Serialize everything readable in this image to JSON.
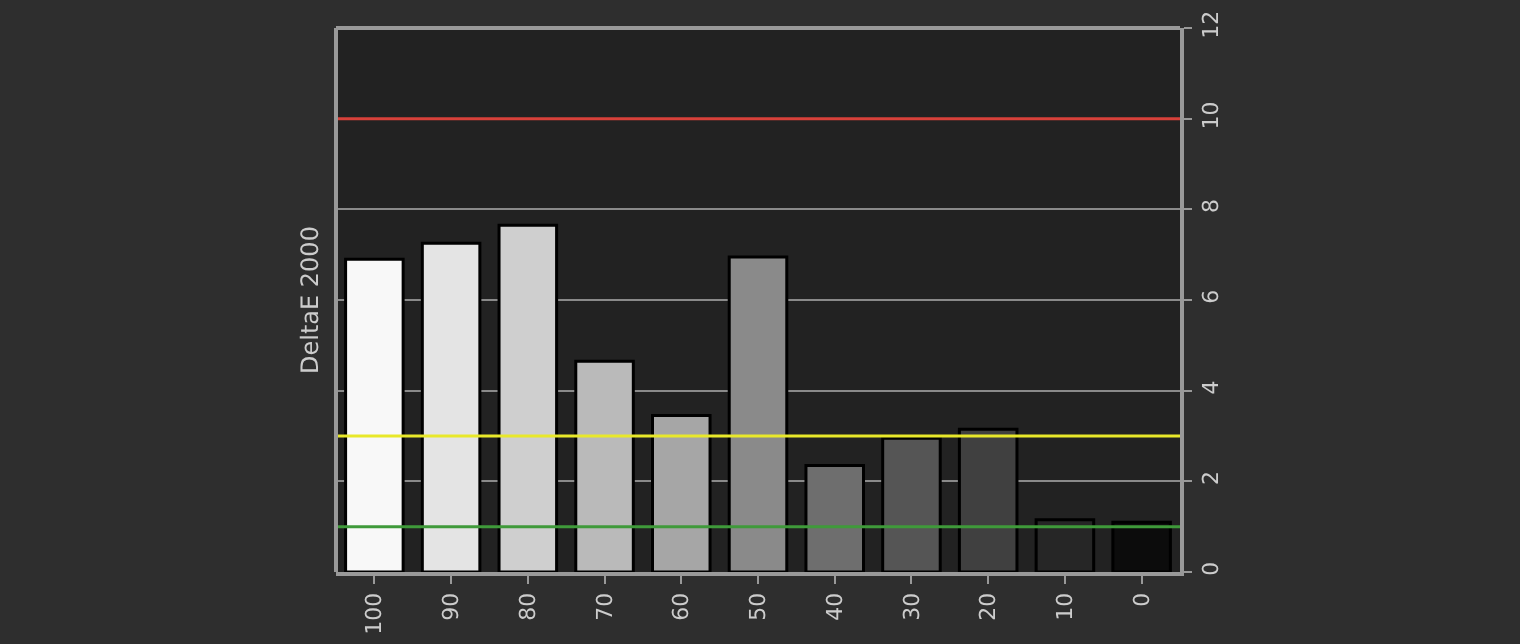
{
  "chart_data": {
    "type": "bar",
    "ylabel": "DeltaE 2000",
    "categories": [
      "100",
      "90",
      "80",
      "70",
      "60",
      "50",
      "40",
      "30",
      "20",
      "10",
      "0"
    ],
    "values": [
      6.9,
      7.25,
      7.65,
      4.65,
      3.45,
      6.95,
      2.35,
      2.95,
      3.15,
      1.15,
      1.1
    ],
    "colors": [
      "#f8f8f8",
      "#e4e4e4",
      "#cfcfcf",
      "#bababa",
      "#a6a6a6",
      "#8a8a8a",
      "#6e6e6e",
      "#555555",
      "#404040",
      "#262626",
      "#0c0c0c"
    ],
    "ylim": [
      0,
      12
    ],
    "yticks": [
      0,
      2,
      4,
      6,
      8,
      10,
      12
    ],
    "grid": "y",
    "ref_lines": [
      {
        "axis": "y",
        "value": 10,
        "color": "#d8413a"
      },
      {
        "axis": "y",
        "value": 3,
        "color": "#e8e82a"
      },
      {
        "axis": "y",
        "value": 1,
        "color": "#3f9a3a"
      }
    ]
  }
}
